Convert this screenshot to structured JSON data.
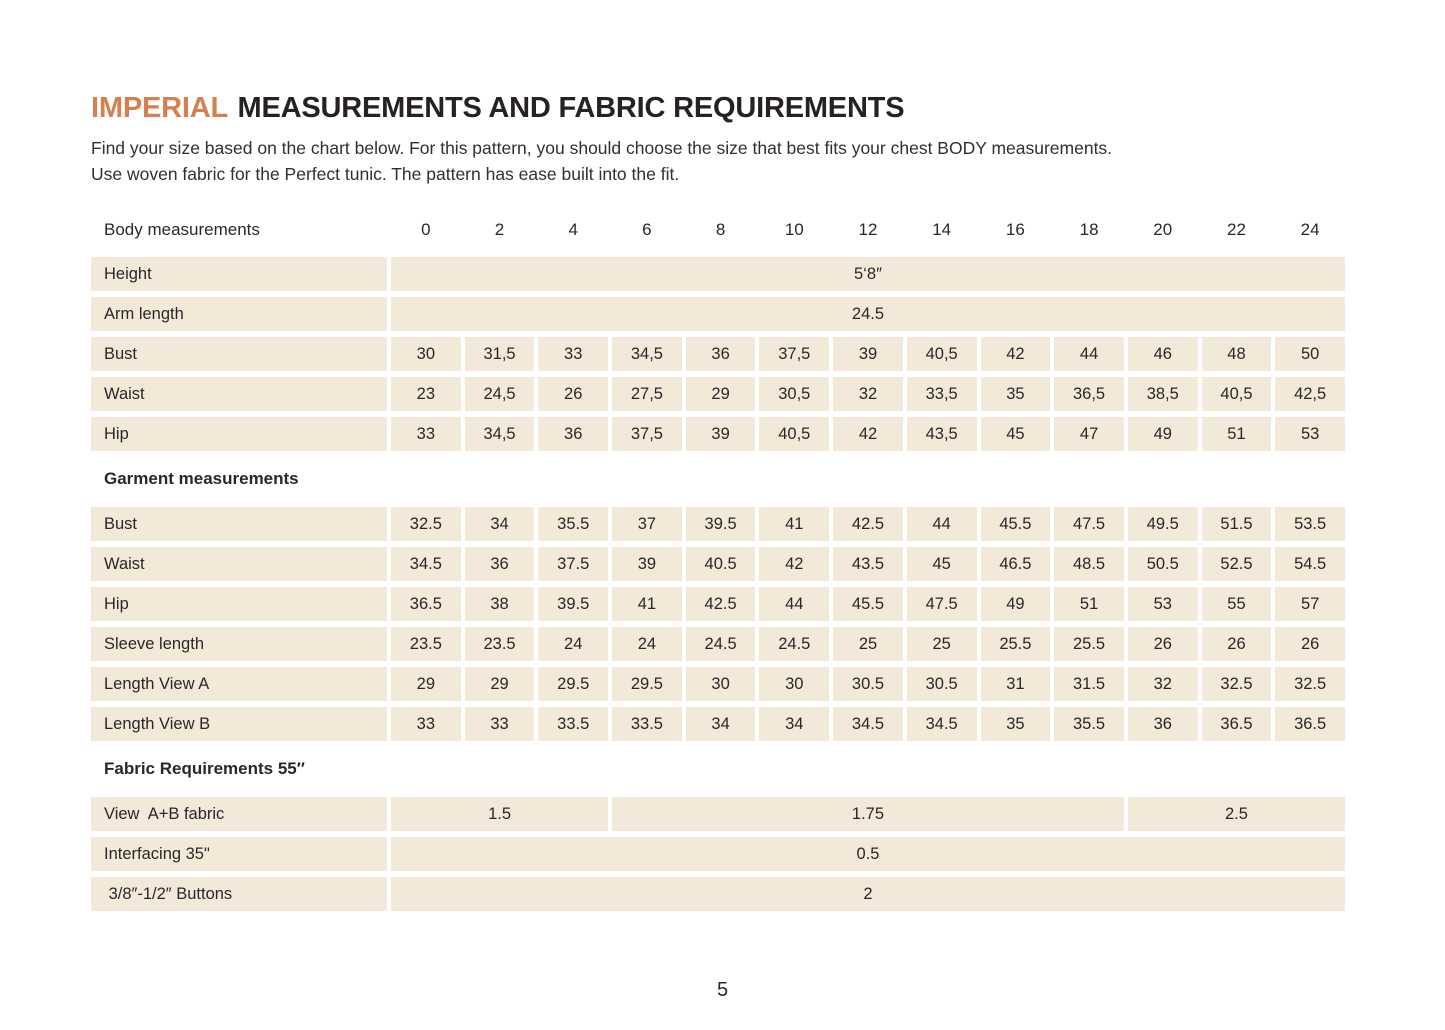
{
  "page": {
    "title_highlight": "IMPERIAL",
    "title_rest": "MEASUREMENTS AND FABRIC REQUIREMENTS",
    "intro_line1": "Find your size based on the chart below. For this pattern, you should choose the size that best fits your chest BODY measurements.",
    "intro_line2": "Use woven fabric for the Perfect tunic. The pattern has ease built into the fit.",
    "page_number": "5"
  },
  "colors": {
    "accent": "#d5804e",
    "cell_bg": "#f2e9d8",
    "text": "#2b2728"
  },
  "table": {
    "header_label": "Body measurements",
    "sizes": [
      "0",
      "2",
      "4",
      "6",
      "8",
      "10",
      "12",
      "14",
      "16",
      "18",
      "20",
      "22",
      "24"
    ],
    "rows": [
      {
        "kind": "data",
        "label": "Height",
        "cells": [
          {
            "v": "5‘8″",
            "span": 13
          }
        ]
      },
      {
        "kind": "data",
        "label": "Arm length",
        "cells": [
          {
            "v": "24.5",
            "span": 13
          }
        ]
      },
      {
        "kind": "data",
        "label": "Bust",
        "cells": [
          {
            "v": "30"
          },
          {
            "v": "31,5"
          },
          {
            "v": "33"
          },
          {
            "v": "34,5"
          },
          {
            "v": "36"
          },
          {
            "v": "37,5"
          },
          {
            "v": "39"
          },
          {
            "v": "40,5"
          },
          {
            "v": "42"
          },
          {
            "v": "44"
          },
          {
            "v": "46"
          },
          {
            "v": "48"
          },
          {
            "v": "50"
          }
        ]
      },
      {
        "kind": "data",
        "label": "Waist",
        "cells": [
          {
            "v": "23"
          },
          {
            "v": "24,5"
          },
          {
            "v": "26"
          },
          {
            "v": "27,5"
          },
          {
            "v": "29"
          },
          {
            "v": "30,5"
          },
          {
            "v": "32"
          },
          {
            "v": "33,5"
          },
          {
            "v": "35"
          },
          {
            "v": "36,5"
          },
          {
            "v": "38,5"
          },
          {
            "v": "40,5"
          },
          {
            "v": "42,5"
          }
        ]
      },
      {
        "kind": "data",
        "label": "Hip",
        "cells": [
          {
            "v": "33"
          },
          {
            "v": "34,5"
          },
          {
            "v": "36"
          },
          {
            "v": "37,5"
          },
          {
            "v": "39"
          },
          {
            "v": "40,5"
          },
          {
            "v": "42"
          },
          {
            "v": "43,5"
          },
          {
            "v": "45"
          },
          {
            "v": "47"
          },
          {
            "v": "49"
          },
          {
            "v": "51"
          },
          {
            "v": "53"
          }
        ]
      },
      {
        "kind": "section",
        "label": "Garment measurements"
      },
      {
        "kind": "data",
        "label": "Bust",
        "cells": [
          {
            "v": "32.5"
          },
          {
            "v": "34"
          },
          {
            "v": "35.5"
          },
          {
            "v": "37"
          },
          {
            "v": "39.5"
          },
          {
            "v": "41"
          },
          {
            "v": "42.5"
          },
          {
            "v": "44"
          },
          {
            "v": "45.5"
          },
          {
            "v": "47.5"
          },
          {
            "v": "49.5"
          },
          {
            "v": "51.5"
          },
          {
            "v": "53.5"
          }
        ]
      },
      {
        "kind": "data",
        "label": "Waist",
        "cells": [
          {
            "v": "34.5"
          },
          {
            "v": "36"
          },
          {
            "v": "37.5"
          },
          {
            "v": "39"
          },
          {
            "v": "40.5"
          },
          {
            "v": "42"
          },
          {
            "v": "43.5"
          },
          {
            "v": "45"
          },
          {
            "v": "46.5"
          },
          {
            "v": "48.5"
          },
          {
            "v": "50.5"
          },
          {
            "v": "52.5"
          },
          {
            "v": "54.5"
          }
        ]
      },
      {
        "kind": "data",
        "label": "Hip",
        "cells": [
          {
            "v": "36.5"
          },
          {
            "v": "38"
          },
          {
            "v": "39.5"
          },
          {
            "v": "41"
          },
          {
            "v": "42.5"
          },
          {
            "v": "44"
          },
          {
            "v": "45.5"
          },
          {
            "v": "47.5"
          },
          {
            "v": "49"
          },
          {
            "v": "51"
          },
          {
            "v": "53"
          },
          {
            "v": "55"
          },
          {
            "v": "57"
          }
        ]
      },
      {
        "kind": "data",
        "label": "Sleeve length",
        "cells": [
          {
            "v": "23.5"
          },
          {
            "v": "23.5"
          },
          {
            "v": "24"
          },
          {
            "v": "24"
          },
          {
            "v": "24.5"
          },
          {
            "v": "24.5"
          },
          {
            "v": "25"
          },
          {
            "v": "25"
          },
          {
            "v": "25.5"
          },
          {
            "v": "25.5"
          },
          {
            "v": "26"
          },
          {
            "v": "26"
          },
          {
            "v": "26"
          }
        ]
      },
      {
        "kind": "data",
        "label": "Length View A",
        "cells": [
          {
            "v": "29"
          },
          {
            "v": "29"
          },
          {
            "v": "29.5"
          },
          {
            "v": "29.5"
          },
          {
            "v": "30"
          },
          {
            "v": "30"
          },
          {
            "v": "30.5"
          },
          {
            "v": "30.5"
          },
          {
            "v": "31"
          },
          {
            "v": "31.5"
          },
          {
            "v": "32"
          },
          {
            "v": "32.5"
          },
          {
            "v": "32.5"
          }
        ]
      },
      {
        "kind": "data",
        "label": "Length View B",
        "cells": [
          {
            "v": "33"
          },
          {
            "v": "33"
          },
          {
            "v": "33.5"
          },
          {
            "v": "33.5"
          },
          {
            "v": "34"
          },
          {
            "v": "34"
          },
          {
            "v": "34.5"
          },
          {
            "v": "34.5"
          },
          {
            "v": "35"
          },
          {
            "v": "35.5"
          },
          {
            "v": "36"
          },
          {
            "v": "36.5"
          },
          {
            "v": "36.5"
          }
        ]
      },
      {
        "kind": "section",
        "label": "Fabric Requirements 55″"
      },
      {
        "kind": "data",
        "label": "View  A+B fabric",
        "cells": [
          {
            "v": "1.5",
            "span": 3
          },
          {
            "v": "1.75",
            "span": 7
          },
          {
            "v": "2.5",
            "span": 3
          }
        ]
      },
      {
        "kind": "data",
        "label": "Interfacing 35\"",
        "cells": [
          {
            "v": "0.5",
            "span": 13
          }
        ]
      },
      {
        "kind": "data",
        "label": " 3/8″-1/2″ Buttons",
        "cells": [
          {
            "v": "2",
            "span": 13
          }
        ]
      }
    ]
  }
}
